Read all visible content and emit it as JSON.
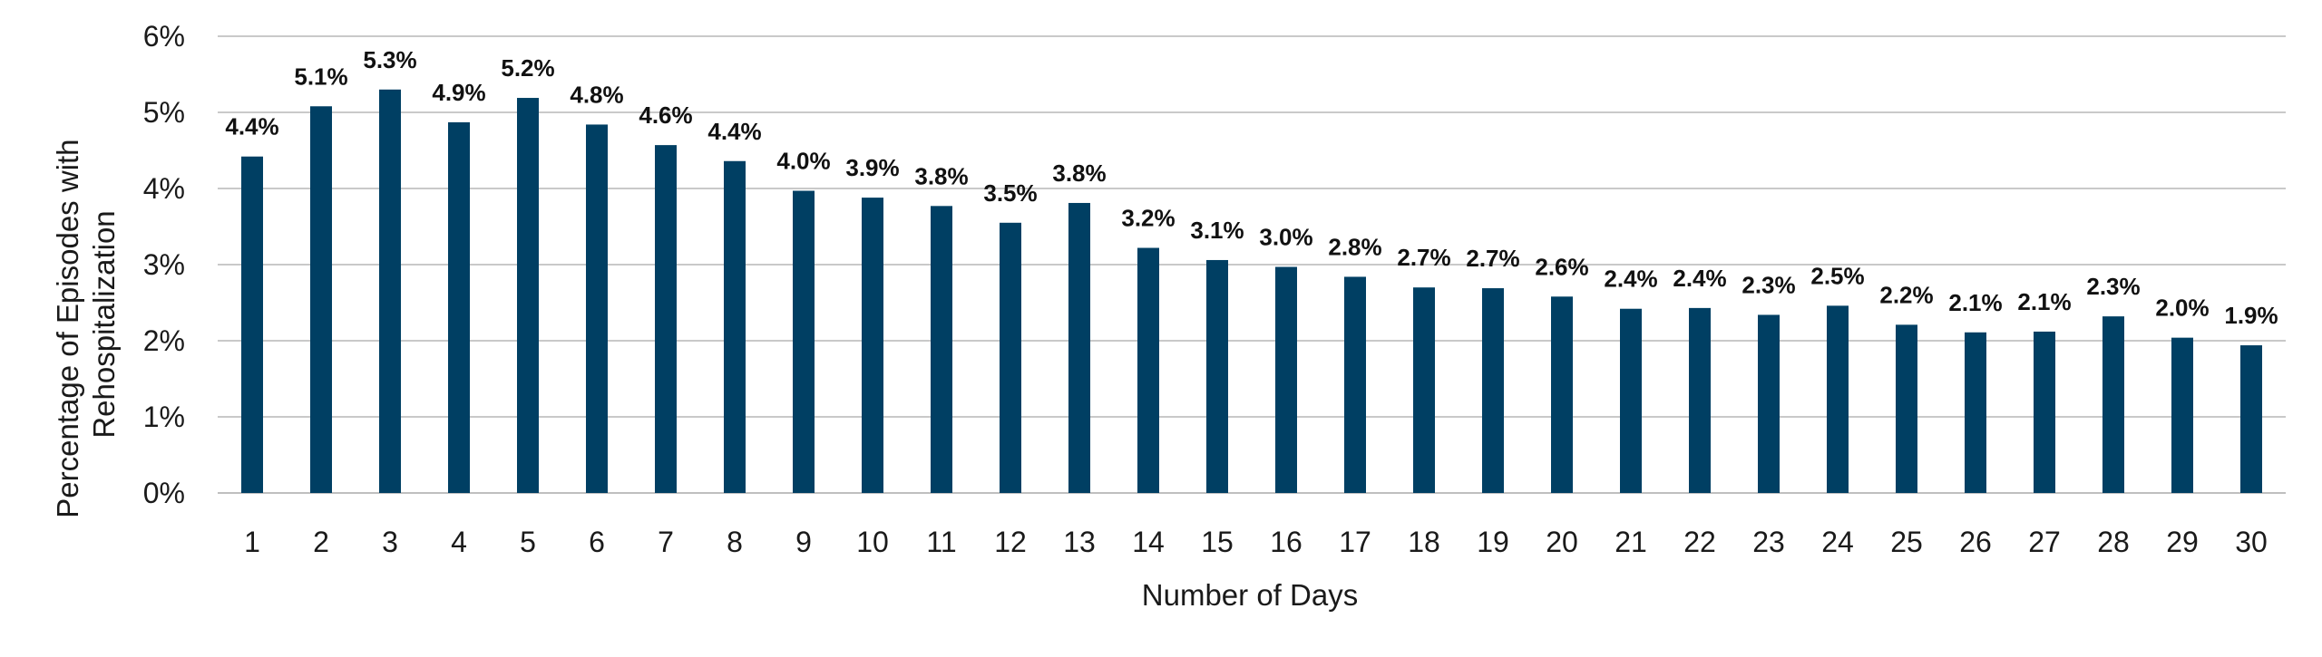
{
  "chart_data": {
    "type": "bar",
    "title": "",
    "xlabel": "Number of Days",
    "ylabel_lines": [
      "Percentage of Episodes with",
      "Rehospitalization"
    ],
    "categories": [
      "1",
      "2",
      "3",
      "4",
      "5",
      "6",
      "7",
      "8",
      "9",
      "10",
      "11",
      "12",
      "13",
      "14",
      "15",
      "16",
      "17",
      "18",
      "19",
      "20",
      "21",
      "22",
      "23",
      "24",
      "25",
      "26",
      "27",
      "28",
      "29",
      "30"
    ],
    "values": [
      4.42,
      5.08,
      5.3,
      4.87,
      5.19,
      4.84,
      4.57,
      4.36,
      3.97,
      3.88,
      3.77,
      3.55,
      3.81,
      3.22,
      3.06,
      2.97,
      2.84,
      2.7,
      2.69,
      2.58,
      2.42,
      2.43,
      2.34,
      2.46,
      2.21,
      2.11,
      2.12,
      2.32,
      2.04,
      1.94
    ],
    "data_labels": [
      "4.4%",
      "5.1%",
      "5.3%",
      "4.9%",
      "5.2%",
      "4.8%",
      "4.6%",
      "4.4%",
      "4.0%",
      "3.9%",
      "3.8%",
      "3.5%",
      "3.8%",
      "3.2%",
      "3.1%",
      "3.0%",
      "2.8%",
      "2.7%",
      "2.7%",
      "2.6%",
      "2.4%",
      "2.4%",
      "2.3%",
      "2.5%",
      "2.2%",
      "2.1%",
      "2.1%",
      "2.3%",
      "2.0%",
      "1.9%"
    ],
    "y_ticks": [
      0,
      1,
      2,
      3,
      4,
      5,
      6
    ],
    "y_tick_labels": [
      "0%",
      "1%",
      "2%",
      "3%",
      "4%",
      "5%",
      "6%"
    ],
    "ylim": [
      0,
      6
    ],
    "grid": true,
    "legend": "none",
    "colors": {
      "bar": "#003f63",
      "grid": "#c9c9c9",
      "axis": "#bfbfbf"
    }
  }
}
